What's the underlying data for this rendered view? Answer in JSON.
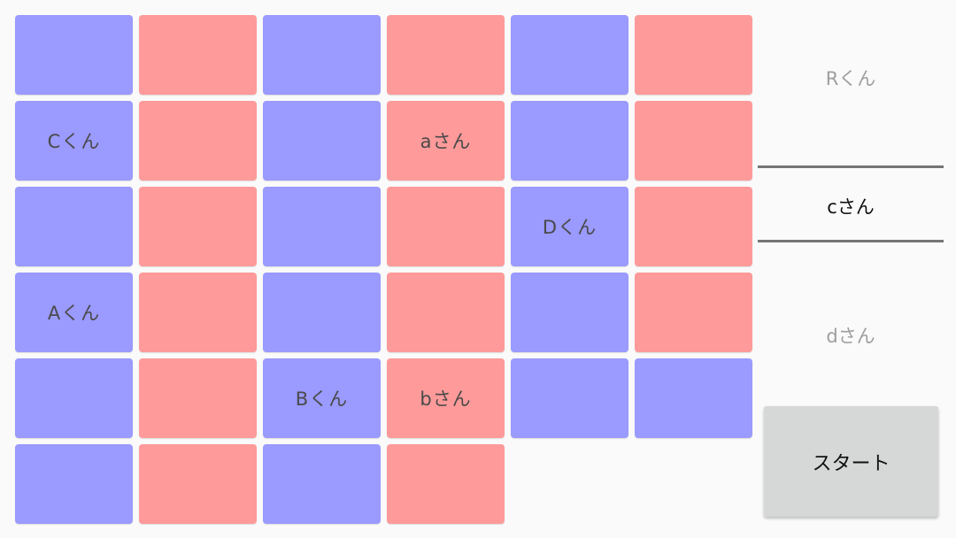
{
  "colors": {
    "blue_seat": "#9a9aff",
    "red_seat": "#ff9a9a",
    "background": "#fafafa",
    "button_bg": "#d6d7d7"
  },
  "seat_grid": {
    "rows": [
      [
        {
          "color": "blue",
          "label": ""
        },
        {
          "color": "red",
          "label": ""
        },
        {
          "color": "blue",
          "label": ""
        },
        {
          "color": "red",
          "label": ""
        },
        {
          "color": "blue",
          "label": ""
        },
        {
          "color": "red",
          "label": ""
        }
      ],
      [
        {
          "color": "blue",
          "label": "Cくん"
        },
        {
          "color": "red",
          "label": ""
        },
        {
          "color": "blue",
          "label": ""
        },
        {
          "color": "red",
          "label": "aさん"
        },
        {
          "color": "blue",
          "label": ""
        },
        {
          "color": "red",
          "label": ""
        }
      ],
      [
        {
          "color": "blue",
          "label": ""
        },
        {
          "color": "red",
          "label": ""
        },
        {
          "color": "blue",
          "label": ""
        },
        {
          "color": "red",
          "label": ""
        },
        {
          "color": "blue",
          "label": "Dくん"
        },
        {
          "color": "red",
          "label": ""
        }
      ],
      [
        {
          "color": "blue",
          "label": "Aくん"
        },
        {
          "color": "red",
          "label": ""
        },
        {
          "color": "blue",
          "label": ""
        },
        {
          "color": "red",
          "label": ""
        },
        {
          "color": "blue",
          "label": ""
        },
        {
          "color": "red",
          "label": ""
        }
      ],
      [
        {
          "color": "blue",
          "label": ""
        },
        {
          "color": "red",
          "label": ""
        },
        {
          "color": "blue",
          "label": "Bくん"
        },
        {
          "color": "red",
          "label": "bさん"
        },
        {
          "color": "blue",
          "label": ""
        },
        {
          "color": "blue",
          "label": ""
        }
      ],
      [
        {
          "color": "blue",
          "label": ""
        },
        {
          "color": "red",
          "label": ""
        },
        {
          "color": "blue",
          "label": ""
        },
        {
          "color": "red",
          "label": ""
        },
        {
          "color": "empty",
          "label": ""
        },
        {
          "color": "empty",
          "label": ""
        }
      ]
    ]
  },
  "picker": {
    "previous": "Rくん",
    "selected": "cさん",
    "next": "dさん"
  },
  "start_button": {
    "label": "スタート"
  }
}
